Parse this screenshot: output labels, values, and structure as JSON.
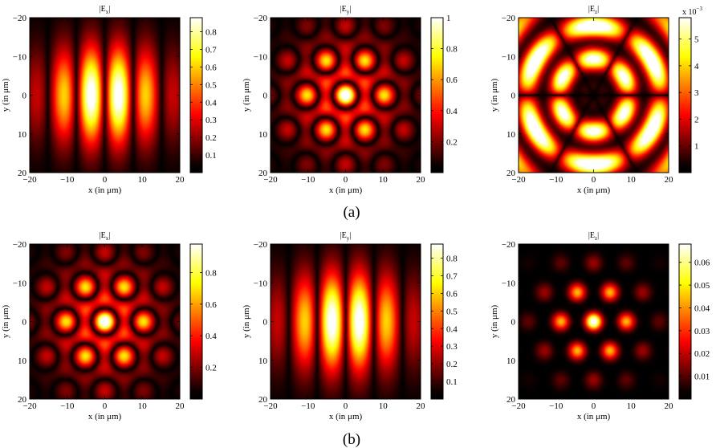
{
  "figure": {
    "row_labels": [
      "(a)",
      "(b)"
    ],
    "colormap": "hot",
    "xlabel": "x (in  μm)",
    "ylabel": "y (in  μm)",
    "axis_ticks": [
      -20,
      -10,
      0,
      10,
      20
    ]
  },
  "chart_data": [
    {
      "type": "heatmap",
      "row": "(a)",
      "title_main": "|E",
      "title_sub": "x",
      "title_end": "|",
      "pattern": "stripes_x",
      "xlim": [
        -20,
        20
      ],
      "ylim": [
        -20,
        20
      ],
      "y_reversed": true,
      "colorbar_max": 0.88,
      "colorbar_ticks": [
        "0.1",
        "0.2",
        "0.3",
        "0.4",
        "0.5",
        "0.6",
        "0.7",
        "0.8"
      ],
      "colorbar_values": [
        0.1,
        0.2,
        0.3,
        0.4,
        0.5,
        0.6,
        0.7,
        0.8
      ],
      "colorbar_exponent": ""
    },
    {
      "type": "heatmap",
      "row": "(a)",
      "title_main": "|E",
      "title_sub": "y",
      "title_end": "|",
      "pattern": "hex_spots",
      "xlim": [
        -20,
        20
      ],
      "ylim": [
        -20,
        20
      ],
      "y_reversed": true,
      "colorbar_max": 1.0,
      "colorbar_ticks": [
        "0.2",
        "0.4",
        "0.6",
        "0.8",
        "1"
      ],
      "colorbar_values": [
        0.2,
        0.4,
        0.6,
        0.8,
        1.0
      ],
      "colorbar_exponent": ""
    },
    {
      "type": "heatmap",
      "row": "(a)",
      "title_main": "|E",
      "title_sub": "z",
      "title_end": "|",
      "pattern": "star",
      "xlim": [
        -20,
        20
      ],
      "ylim": [
        -20,
        20
      ],
      "y_reversed": true,
      "colorbar_max": 5.8,
      "colorbar_ticks": [
        "1",
        "2",
        "3",
        "4",
        "5"
      ],
      "colorbar_values": [
        1,
        2,
        3,
        4,
        5
      ],
      "colorbar_exponent": "x 10",
      "colorbar_exponent_power": "−3"
    },
    {
      "type": "heatmap",
      "row": "(b)",
      "title_main": "|E",
      "title_sub": "x",
      "title_end": "|",
      "pattern": "hex_spots",
      "xlim": [
        -20,
        20
      ],
      "ylim": [
        -20,
        20
      ],
      "y_reversed": true,
      "colorbar_max": 0.98,
      "colorbar_ticks": [
        "0.2",
        "0.4",
        "0.6",
        "0.8"
      ],
      "colorbar_values": [
        0.2,
        0.4,
        0.6,
        0.8
      ],
      "colorbar_exponent": ""
    },
    {
      "type": "heatmap",
      "row": "(b)",
      "title_main": "|E",
      "title_sub": "y",
      "title_end": "|",
      "pattern": "stripes_x",
      "xlim": [
        -20,
        20
      ],
      "ylim": [
        -20,
        20
      ],
      "y_reversed": true,
      "colorbar_max": 0.88,
      "colorbar_ticks": [
        "0.1",
        "0.2",
        "0.3",
        "0.4",
        "0.5",
        "0.6",
        "0.7",
        "0.8"
      ],
      "colorbar_values": [
        0.1,
        0.2,
        0.3,
        0.4,
        0.5,
        0.6,
        0.7,
        0.8
      ],
      "colorbar_exponent": ""
    },
    {
      "type": "heatmap",
      "row": "(b)",
      "title_main": "|E",
      "title_sub": "z",
      "title_end": "|",
      "pattern": "tri_spots",
      "xlim": [
        -20,
        20
      ],
      "ylim": [
        -20,
        20
      ],
      "y_reversed": true,
      "colorbar_max": 0.068,
      "colorbar_ticks": [
        "0.01",
        "0.02",
        "0.03",
        "0.04",
        "0.05",
        "0.06"
      ],
      "colorbar_values": [
        0.01,
        0.02,
        0.03,
        0.04,
        0.05,
        0.06
      ],
      "colorbar_exponent": ""
    }
  ]
}
